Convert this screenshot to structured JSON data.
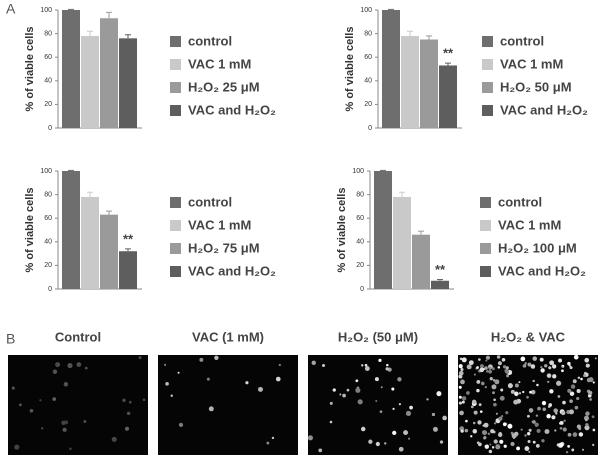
{
  "panel_labels": [
    "A",
    "B"
  ],
  "chart_data": [
    {
      "type": "bar",
      "ylabel": "% of viable cells",
      "ylim": [
        0,
        100
      ],
      "yticks": [
        0,
        20,
        40,
        60,
        80,
        100
      ],
      "series": [
        {
          "name": "control",
          "color": "#6e6e6e",
          "values": [
            100
          ],
          "errors": [
            0.5
          ]
        },
        {
          "name": "VAC 1 mM",
          "color": "#c9c9c9",
          "values": [
            78
          ],
          "errors": [
            4
          ]
        },
        {
          "name": "H₂O₂ 25 μM",
          "color": "#9a9a9a",
          "values": [
            93
          ],
          "errors": [
            5
          ]
        },
        {
          "name": "VAC and H₂O₂",
          "color": "#5e5e5e",
          "values": [
            76
          ],
          "errors": [
            3
          ]
        }
      ]
    },
    {
      "type": "bar",
      "ylabel": "% of viable cells",
      "ylim": [
        0,
        100
      ],
      "yticks": [
        0,
        20,
        40,
        60,
        80,
        100
      ],
      "annotation": "**",
      "series": [
        {
          "name": "control",
          "color": "#6e6e6e",
          "values": [
            100
          ],
          "errors": [
            0.5
          ]
        },
        {
          "name": "VAC 1 mM",
          "color": "#c9c9c9",
          "values": [
            78
          ],
          "errors": [
            4
          ]
        },
        {
          "name": "H₂O₂ 50 μM",
          "color": "#9a9a9a",
          "values": [
            75
          ],
          "errors": [
            3
          ]
        },
        {
          "name": "VAC and H₂O₂",
          "color": "#5e5e5e",
          "values": [
            53
          ],
          "errors": [
            2
          ]
        }
      ]
    },
    {
      "type": "bar",
      "ylabel": "% of viable cells",
      "ylim": [
        0,
        100
      ],
      "yticks": [
        0,
        20,
        40,
        60,
        80,
        100
      ],
      "annotation": "**",
      "series": [
        {
          "name": "control",
          "color": "#6e6e6e",
          "values": [
            100
          ],
          "errors": [
            0.5
          ]
        },
        {
          "name": "VAC 1 mM",
          "color": "#c9c9c9",
          "values": [
            78
          ],
          "errors": [
            4
          ]
        },
        {
          "name": "H₂O₂ 75 μM",
          "color": "#9a9a9a",
          "values": [
            63
          ],
          "errors": [
            3
          ]
        },
        {
          "name": "VAC and H₂O₂",
          "color": "#5e5e5e",
          "values": [
            32
          ],
          "errors": [
            2
          ]
        }
      ]
    },
    {
      "type": "bar",
      "ylabel": "% of viable cells",
      "ylim": [
        0,
        100
      ],
      "yticks": [
        0,
        20,
        40,
        60,
        80,
        100
      ],
      "annotation": "**",
      "series": [
        {
          "name": "control",
          "color": "#6e6e6e",
          "values": [
            100
          ],
          "errors": [
            0.5
          ]
        },
        {
          "name": "VAC 1 mM",
          "color": "#c9c9c9",
          "values": [
            78
          ],
          "errors": [
            4
          ]
        },
        {
          "name": "H₂O₂ 100 μM",
          "color": "#9a9a9a",
          "values": [
            46
          ],
          "errors": [
            3
          ]
        },
        {
          "name": "VAC and H₂O₂",
          "color": "#5e5e5e",
          "values": [
            7
          ],
          "errors": [
            1
          ]
        }
      ]
    }
  ],
  "images": [
    {
      "label": "Control"
    },
    {
      "label": "VAC (1 mM)"
    },
    {
      "label": "H₂O₂ (50 μM)"
    },
    {
      "label": "H₂O₂ & VAC"
    }
  ]
}
